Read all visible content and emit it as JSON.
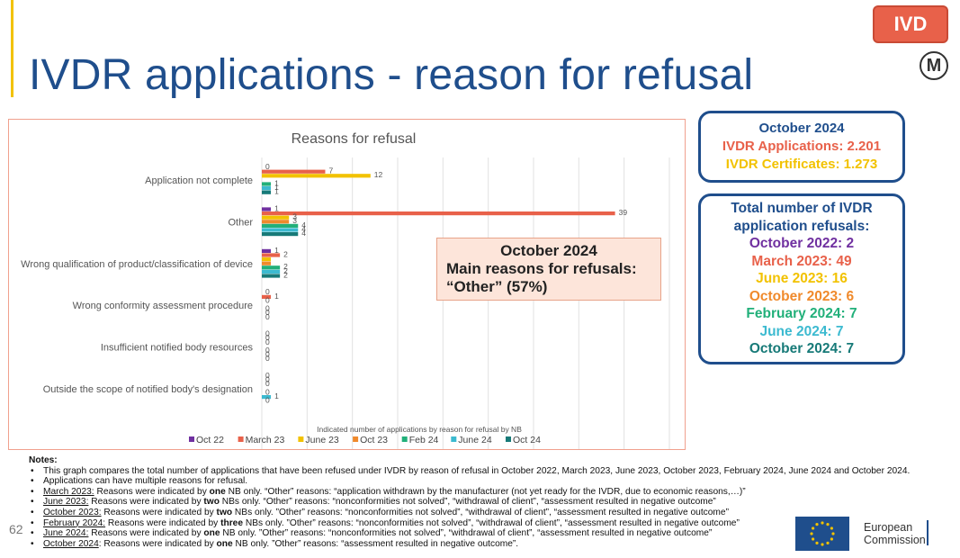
{
  "slide": {
    "title": "IVDR applications - reason for refusal",
    "badge": "IVD",
    "m_symbol": "M",
    "page_number": "62"
  },
  "colors": {
    "title": "#1f4e8c",
    "accent_bar": "#f2c200",
    "badge_bg": "#e8614a",
    "box_border": "#1f4e8c",
    "callout_bg": "#fde5da"
  },
  "callout": {
    "title": "October 2024",
    "line1": "Main reasons for refusals:",
    "line2": "“Other” (57%)"
  },
  "info_box": {
    "title": "October 2024",
    "applications": "IVDR Applications: 2.201",
    "certificates": "IVDR Certificates: 1.273"
  },
  "refusals_box": {
    "title_line1": "Total number of IVDR",
    "title_line2": "application refusals:",
    "entries": [
      {
        "text": "October 2022: 2",
        "color": "#7030a0"
      },
      {
        "text": "March 2023: 49",
        "color": "#e8614a"
      },
      {
        "text": "June 2023: 16",
        "color": "#f2c200"
      },
      {
        "text": "October 2023: 6",
        "color": "#f08a2c"
      },
      {
        "text": "February 2024: 7",
        "color": "#22b07a"
      },
      {
        "text": "June 2024: 7",
        "color": "#3cbad0"
      },
      {
        "text": "October 2024: 7",
        "color": "#177a78"
      }
    ]
  },
  "chart_data": {
    "type": "bar",
    "orientation": "horizontal",
    "title": "Reasons for refusal",
    "xlabel": "Indicated number of applications by reason for refusal by NB",
    "ylabel": "",
    "xlim": [
      0,
      45
    ],
    "xticks": [
      "0",
      "5",
      "10",
      "15",
      "20",
      "25",
      "30",
      "35",
      "40",
      "45"
    ],
    "xtick_values": [
      0,
      5,
      10,
      15,
      20,
      25,
      30,
      35,
      40,
      45
    ],
    "grid": true,
    "legend_position": "bottom",
    "categories": [
      "Application not complete",
      "Other",
      "Wrong qualification of product/classification of device",
      "Wrong conformity assessment procedure",
      "Insufficient notified body resources",
      "Outside the scope of notified body's designation"
    ],
    "series": [
      {
        "name": "Oct 22",
        "color": "#7030a0",
        "values": [
          0,
          1,
          1,
          0,
          0,
          0
        ],
        "labels": [
          "0",
          "1",
          "1",
          "0",
          "0",
          "0"
        ]
      },
      {
        "name": "March 23",
        "color": "#e8614a",
        "values": [
          7,
          39,
          2,
          1,
          0,
          0
        ],
        "labels": [
          "7",
          "39",
          "2",
          "1",
          "0",
          "0"
        ]
      },
      {
        "name": "June 23",
        "color": "#f2c200",
        "values": [
          12,
          3,
          1,
          0,
          0,
          0
        ],
        "labels": [
          "12",
          "3",
          "",
          "0",
          "0",
          "0"
        ]
      },
      {
        "name": "Oct 23",
        "color": "#f08a2c",
        "values": [
          0,
          3,
          1,
          0,
          0,
          0
        ],
        "labels": [
          "",
          "3",
          "",
          "",
          "",
          ""
        ]
      },
      {
        "name": "Feb 24",
        "color": "#22b07a",
        "values": [
          1,
          4,
          2,
          0,
          0,
          0
        ],
        "labels": [
          "1",
          "4",
          "2",
          "0",
          "0",
          "0"
        ]
      },
      {
        "name": "June 24",
        "color": "#3cbad0",
        "values": [
          1,
          4,
          2,
          0,
          0,
          1
        ],
        "labels": [
          "1",
          "4",
          "2",
          "0",
          "0",
          "1"
        ]
      },
      {
        "name": "Oct 24",
        "color": "#177a78",
        "values": [
          1,
          4,
          2,
          0,
          0,
          0
        ],
        "labels": [
          "1",
          "4",
          "2",
          "0",
          "0",
          "0"
        ]
      }
    ]
  },
  "notes": {
    "title": "Notes:",
    "n1": "This graph compares the total number of applications that have been refused under IVDR by reason of refusal in October 2022, March 2023, June 2023, October 2023, February 2024, June 2024 and October 2024.",
    "n2": "Applications can have multiple reasons for refusal.",
    "n3_label": "March 2023:",
    "n3_a": " Reasons were indicated by ",
    "n3_bold": "one",
    "n3_b": " NB only. “Other” reasons: “application withdrawn by the manufacturer (not yet ready for the IVDR, due to economic reasons,…)”",
    "n4_label": "June 2023:",
    "n4_a": "  Reasons were indicated by ",
    "n4_bold": "two",
    "n4_b": " NBs only. “Other” reasons: “nonconformities not solved”, “withdrawal of client”, “assessment resulted in negative outcome”",
    "n5_label": "October 2023:",
    "n5_a": " Reasons were indicated by ",
    "n5_bold": "two",
    "n5_b": " NBs only. ”Other” reasons: “nonconformities not solved”, “withdrawal of client”, “assessment resulted in negative outcome”",
    "n6_label": "February 2024:",
    "n6_a": " Reasons were indicated by ",
    "n6_bold": "three",
    "n6_b": " NBs only. ”Other” reasons: “nonconformities not solved”, “withdrawal of client”, “assessment resulted in negative outcome”",
    "n7_label": "June 2024:",
    "n7_a": " Reasons were indicated by ",
    "n7_bold": "one",
    "n7_b": " NB only. ”Other” reasons: “nonconformities not solved”, “withdrawal of client”, “assessment resulted in negative outcome”",
    "n8_label": "October 2024",
    "n8_a": ": Reasons were indicated by ",
    "n8_bold": "one",
    "n8_b": " NB only. ”Other” reasons: “assessment resulted in negative outcome”."
  },
  "footer": {
    "org_line1": "European",
    "org_line2": "Commission"
  }
}
